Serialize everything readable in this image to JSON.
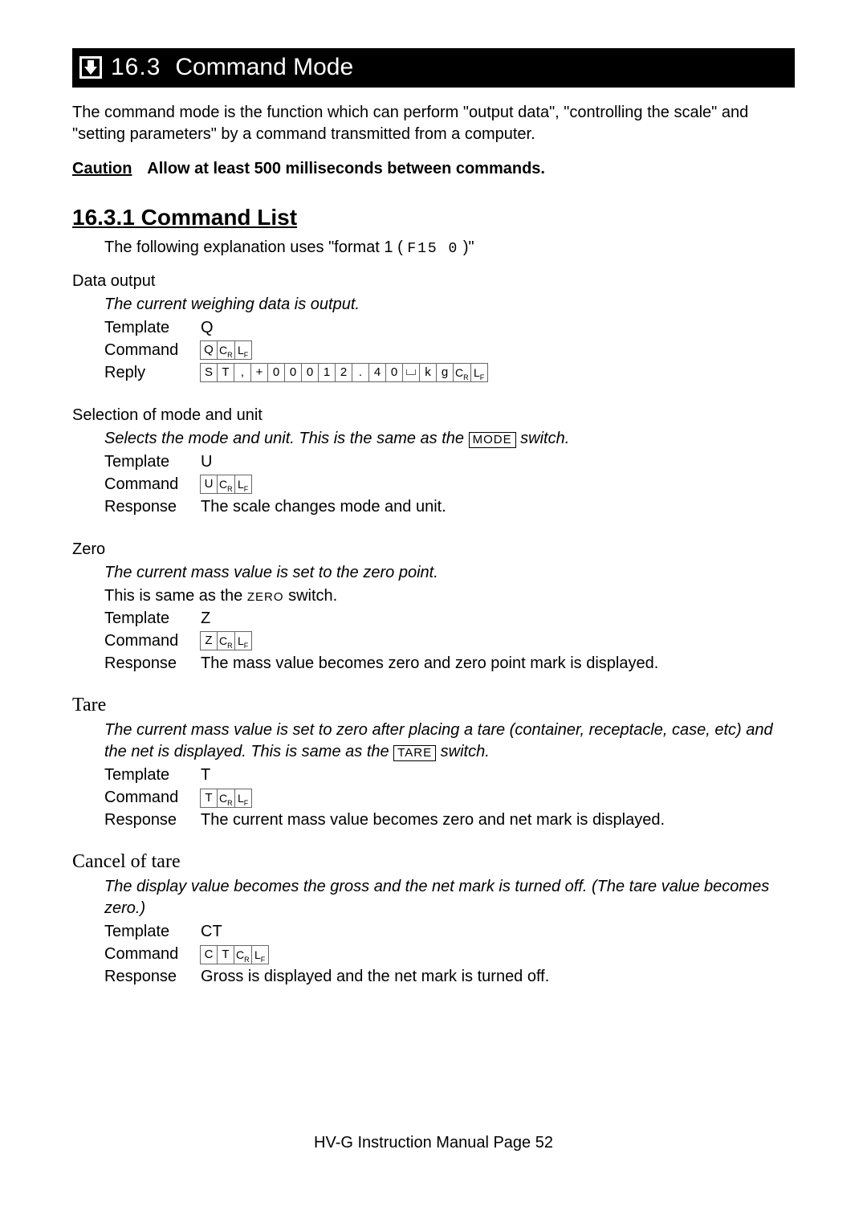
{
  "banner": {
    "num": "16.3",
    "title": "Command Mode"
  },
  "intro": "The command mode is the function which can perform \"output data\", \"controlling the scale\" and \"setting parameters\" by a command transmitted from a computer.",
  "caution": {
    "label": "Caution",
    "text": "Allow at least 500 milliseconds between commands."
  },
  "subsection": "16.3.1 Command List",
  "format_line_pre": "The following explanation uses \"format 1 (",
  "format_code": "F15 0",
  "format_line_post": ")\"",
  "groups": {
    "data_output": {
      "heading": "Data output",
      "desc": "The current weighing data is output.",
      "template_label": "Template",
      "template_val": "Q",
      "command_label": "Command",
      "command_chars": [
        "Q",
        "CR",
        "LF"
      ],
      "reply_label": "Reply",
      "reply_chars": [
        "S",
        "T",
        ",",
        "+",
        "0",
        "0",
        "0",
        "1",
        "2",
        ".",
        "4",
        "0",
        "SP",
        "k",
        "g",
        "CR",
        "LF"
      ]
    },
    "selection": {
      "heading": "Selection of mode and unit",
      "desc_pre": "Selects the mode and unit. This is the same as the ",
      "desc_kw": "MODE",
      "desc_post": " switch.",
      "template_label": "Template",
      "template_val": "U",
      "command_label": "Command",
      "command_chars": [
        "U",
        "CR",
        "LF"
      ],
      "response_label": "Response",
      "response_val": "The scale changes mode and unit."
    },
    "zero": {
      "heading": "Zero",
      "desc": "The current mass value is set to the zero point.",
      "desc2_pre": "This is same as the ",
      "desc2_kw": "ZERO",
      "desc2_post": " switch.",
      "template_label": "Template",
      "template_val": "Z",
      "command_label": "Command",
      "command_chars": [
        "Z",
        "CR",
        "LF"
      ],
      "response_label": "Response",
      "response_val": "The mass value becomes zero and zero point mark is displayed."
    },
    "tare": {
      "heading": "Tare",
      "desc_pre": "The current mass value is set to zero after placing a tare (container, receptacle, case, etc) and the net is displayed. This is same as the ",
      "desc_kw": "TARE",
      "desc_post": " switch.",
      "template_label": "Template",
      "template_val": "T",
      "command_label": "Command",
      "command_chars": [
        "T",
        "CR",
        "LF"
      ],
      "response_label": "Response",
      "response_val": "The current mass value becomes zero and net mark is displayed."
    },
    "cancel": {
      "heading": "Cancel of tare",
      "desc": "The display value becomes the gross and the net mark is turned off. (The tare value becomes zero.)",
      "template_label": "Template",
      "template_val": "CT",
      "command_label": "Command",
      "command_chars": [
        "C",
        "T",
        "CR",
        "LF"
      ],
      "response_label": "Response",
      "response_val": "Gross is displayed and the net mark is turned off."
    }
  },
  "footer": "HV-G Instruction Manual Page 52"
}
